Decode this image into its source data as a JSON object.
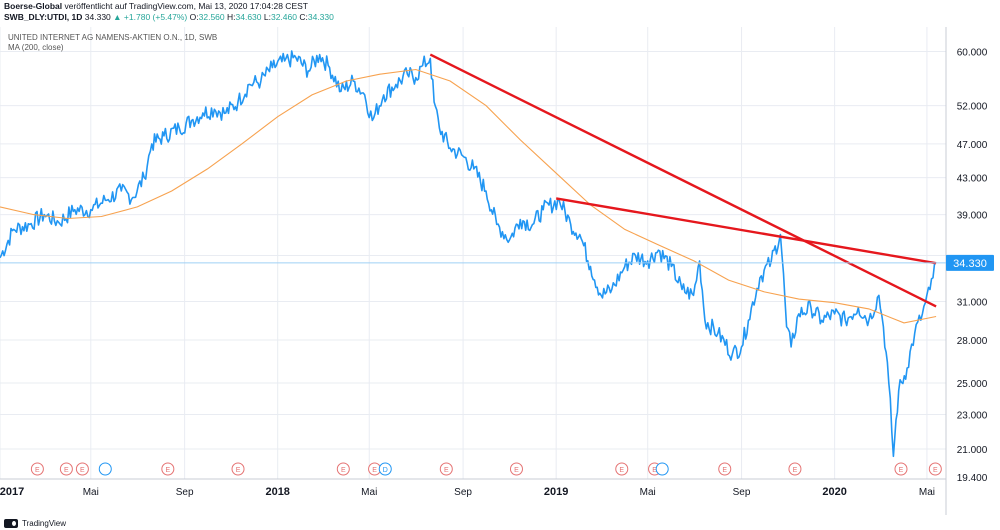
{
  "header": {
    "line1_author": "Boerse-Global",
    "line1_rest": "veröffentlicht auf TradingView.com, Mai 13, 2020 17:04:28 CEST",
    "symbol": "SWB_DLY:UTDI, 1D",
    "last": "34.330",
    "change": "▲ +1.780 (+5.47%)",
    "open_label": "O:",
    "open": "32.560",
    "high_label": "H:",
    "high": "34.630",
    "low_label": "L:",
    "low": "32.460",
    "close_label": "C:",
    "close": "34.330"
  },
  "legend": {
    "title": "UNITED INTERNET AG NAMENS-AKTIEN O.N., 1D, SWB",
    "indicator": "MA (200, close)"
  },
  "footer": {
    "brand": "TradingView"
  },
  "colors": {
    "price": "#2196f3",
    "ma": "#f7a24f",
    "trend": "#e5171d",
    "last_line": "#9fd0f5",
    "last_badge": "#2196f3",
    "event": "#e57373",
    "dividend": "#2196f3",
    "grid": "#e9ecf2",
    "axis_text": "#131722"
  },
  "chart_data": {
    "type": "line",
    "title": "UNITED INTERNET AG NAMENS-AKTIEN O.N., 1D, SWB",
    "y_scale": "log",
    "ylim": [
      19.4,
      64.0
    ],
    "xlim": [
      "2017-01-02",
      "2020-05-26"
    ],
    "grid": true,
    "y_ticks": [
      "60.000",
      "52.000",
      "47.000",
      "43.000",
      "39.000",
      "35.000",
      "31.000",
      "28.000",
      "25.000",
      "23.000",
      "21.000",
      "19.400"
    ],
    "x_ticks": [
      {
        "date": "2017-01-02",
        "label": "2017",
        "bold": true
      },
      {
        "date": "2017-05-01",
        "label": "Mai",
        "bold": false
      },
      {
        "date": "2017-09-01",
        "label": "Sep",
        "bold": false
      },
      {
        "date": "2018-01-01",
        "label": "2018",
        "bold": true
      },
      {
        "date": "2018-05-01",
        "label": "Mai",
        "bold": false
      },
      {
        "date": "2018-09-01",
        "label": "Sep",
        "bold": false
      },
      {
        "date": "2019-01-01",
        "label": "2019",
        "bold": true
      },
      {
        "date": "2019-05-01",
        "label": "Mai",
        "bold": false
      },
      {
        "date": "2019-09-01",
        "label": "Sep",
        "bold": false
      },
      {
        "date": "2020-01-01",
        "label": "2020",
        "bold": true
      },
      {
        "date": "2020-05-01",
        "label": "Mai",
        "bold": false
      }
    ],
    "last_value_label": "34.330",
    "series": [
      {
        "name": "",
        "role": "price",
        "points": [
          [
            "2017-01-02",
            34.8
          ],
          [
            "2017-01-20",
            37.5
          ],
          [
            "2017-02-10",
            38.0
          ],
          [
            "2017-03-01",
            39.0
          ],
          [
            "2017-03-20",
            38.2
          ],
          [
            "2017-04-10",
            39.5
          ],
          [
            "2017-05-01",
            39.5
          ],
          [
            "2017-05-20",
            40.5
          ],
          [
            "2017-06-10",
            41.5
          ],
          [
            "2017-06-25",
            40.8
          ],
          [
            "2017-07-10",
            43.0
          ],
          [
            "2017-07-20",
            47.0
          ],
          [
            "2017-08-05",
            48.0
          ],
          [
            "2017-08-25",
            49.0
          ],
          [
            "2017-09-10",
            50.0
          ],
          [
            "2017-09-25",
            51.0
          ],
          [
            "2017-10-10",
            51.5
          ],
          [
            "2017-10-25",
            51.0
          ],
          [
            "2017-11-10",
            52.5
          ],
          [
            "2017-11-25",
            55.0
          ],
          [
            "2017-12-10",
            55.5
          ],
          [
            "2017-12-25",
            57.5
          ],
          [
            "2018-01-10",
            58.5
          ],
          [
            "2018-01-25",
            59.0
          ],
          [
            "2018-02-10",
            57.0
          ],
          [
            "2018-02-25",
            59.5
          ],
          [
            "2018-03-10",
            57.5
          ],
          [
            "2018-03-25",
            54.0
          ],
          [
            "2018-04-10",
            55.5
          ],
          [
            "2018-04-25",
            53.5
          ],
          [
            "2018-05-05",
            50.0
          ],
          [
            "2018-05-20",
            53.5
          ],
          [
            "2018-06-05",
            55.0
          ],
          [
            "2018-06-20",
            56.5
          ],
          [
            "2018-07-01",
            56.0
          ],
          [
            "2018-07-10",
            57.8
          ],
          [
            "2018-07-20",
            58.9
          ],
          [
            "2018-07-25",
            52.5
          ],
          [
            "2018-08-01",
            49.0
          ],
          [
            "2018-08-15",
            46.5
          ],
          [
            "2018-09-01",
            45.5
          ],
          [
            "2018-09-15",
            44.0
          ],
          [
            "2018-10-01",
            41.5
          ],
          [
            "2018-10-15",
            38.0
          ],
          [
            "2018-11-01",
            36.5
          ],
          [
            "2018-11-15",
            38.5
          ],
          [
            "2018-12-01",
            38.0
          ],
          [
            "2018-12-15",
            39.5
          ],
          [
            "2019-01-05",
            40.5
          ],
          [
            "2019-01-20",
            38.0
          ],
          [
            "2019-02-01",
            37.0
          ],
          [
            "2019-02-15",
            34.0
          ],
          [
            "2019-03-01",
            31.5
          ],
          [
            "2019-03-15",
            32.0
          ],
          [
            "2019-04-01",
            34.0
          ],
          [
            "2019-04-15",
            35.0
          ],
          [
            "2019-05-01",
            34.5
          ],
          [
            "2019-05-15",
            35.5
          ],
          [
            "2019-06-01",
            34.0
          ],
          [
            "2019-06-15",
            32.0
          ],
          [
            "2019-06-30",
            31.5
          ],
          [
            "2019-07-08",
            34.5
          ],
          [
            "2019-07-15",
            29.5
          ],
          [
            "2019-08-01",
            28.5
          ],
          [
            "2019-08-20",
            27.0
          ],
          [
            "2019-09-01",
            27.5
          ],
          [
            "2019-09-10",
            29.5
          ],
          [
            "2019-09-25",
            33.0
          ],
          [
            "2019-10-10",
            34.5
          ],
          [
            "2019-10-22",
            37.0
          ],
          [
            "2019-10-30",
            29.0
          ],
          [
            "2019-11-05",
            27.5
          ],
          [
            "2019-11-15",
            30.0
          ],
          [
            "2019-12-01",
            30.5
          ],
          [
            "2019-12-15",
            29.5
          ],
          [
            "2020-01-01",
            30.0
          ],
          [
            "2020-01-15",
            29.5
          ],
          [
            "2020-02-01",
            30.5
          ],
          [
            "2020-02-15",
            29.5
          ],
          [
            "2020-02-28",
            31.5
          ],
          [
            "2020-03-05",
            29.0
          ],
          [
            "2020-03-12",
            25.0
          ],
          [
            "2020-03-18",
            20.6
          ],
          [
            "2020-03-25",
            24.5
          ],
          [
            "2020-04-05",
            26.0
          ],
          [
            "2020-04-15",
            28.5
          ],
          [
            "2020-04-25",
            30.0
          ],
          [
            "2020-05-05",
            32.0
          ],
          [
            "2020-05-13",
            34.33
          ]
        ]
      },
      {
        "name": "MA (200, close)",
        "role": "ma",
        "points": [
          [
            "2017-01-02",
            39.8
          ],
          [
            "2017-02-15",
            39.0
          ],
          [
            "2017-04-01",
            38.6
          ],
          [
            "2017-05-15",
            38.8
          ],
          [
            "2017-07-01",
            39.8
          ],
          [
            "2017-08-15",
            41.5
          ],
          [
            "2017-10-01",
            44.0
          ],
          [
            "2017-11-15",
            47.0
          ],
          [
            "2018-01-01",
            50.5
          ],
          [
            "2018-02-15",
            53.5
          ],
          [
            "2018-04-01",
            55.5
          ],
          [
            "2018-05-15",
            56.5
          ],
          [
            "2018-07-01",
            57.2
          ],
          [
            "2018-08-15",
            55.5
          ],
          [
            "2018-10-01",
            52.0
          ],
          [
            "2018-11-15",
            47.5
          ],
          [
            "2019-01-01",
            43.5
          ],
          [
            "2019-02-15",
            40.0
          ],
          [
            "2019-04-01",
            37.5
          ],
          [
            "2019-05-15",
            36.0
          ],
          [
            "2019-07-01",
            34.5
          ],
          [
            "2019-08-15",
            32.8
          ],
          [
            "2019-10-01",
            31.8
          ],
          [
            "2019-11-15",
            31.2
          ],
          [
            "2020-01-01",
            30.9
          ],
          [
            "2020-02-15",
            30.4
          ],
          [
            "2020-04-01",
            29.3
          ],
          [
            "2020-05-13",
            29.8
          ]
        ]
      },
      {
        "name": "",
        "role": "trend",
        "points": [
          [
            "2018-07-20",
            59.5
          ],
          [
            "2020-05-13",
            30.6
          ]
        ]
      },
      {
        "name": "",
        "role": "trend",
        "points": [
          [
            "2019-01-01",
            40.7
          ],
          [
            "2020-05-13",
            34.3
          ]
        ]
      }
    ],
    "events": [
      {
        "date": "2017-02-20",
        "label": "E"
      },
      {
        "date": "2017-03-30",
        "label": "E"
      },
      {
        "date": "2017-04-20",
        "label": "E"
      },
      {
        "date": "2017-08-10",
        "label": "E"
      },
      {
        "date": "2017-11-10",
        "label": "E"
      },
      {
        "date": "2018-03-28",
        "label": "E"
      },
      {
        "date": "2018-05-08",
        "label": "E"
      },
      {
        "date": "2018-08-10",
        "label": "E"
      },
      {
        "date": "2018-11-10",
        "label": "E"
      },
      {
        "date": "2019-03-28",
        "label": "E"
      },
      {
        "date": "2019-05-10",
        "label": "E"
      },
      {
        "date": "2019-08-10",
        "label": "E"
      },
      {
        "date": "2019-11-10",
        "label": "E"
      },
      {
        "date": "2020-03-28",
        "label": "E"
      },
      {
        "date": "2020-05-12",
        "label": "E"
      }
    ],
    "dividends": [
      {
        "date": "2017-05-20",
        "label": ""
      },
      {
        "date": "2018-05-22",
        "label": "D"
      },
      {
        "date": "2019-05-20",
        "label": ""
      }
    ]
  }
}
